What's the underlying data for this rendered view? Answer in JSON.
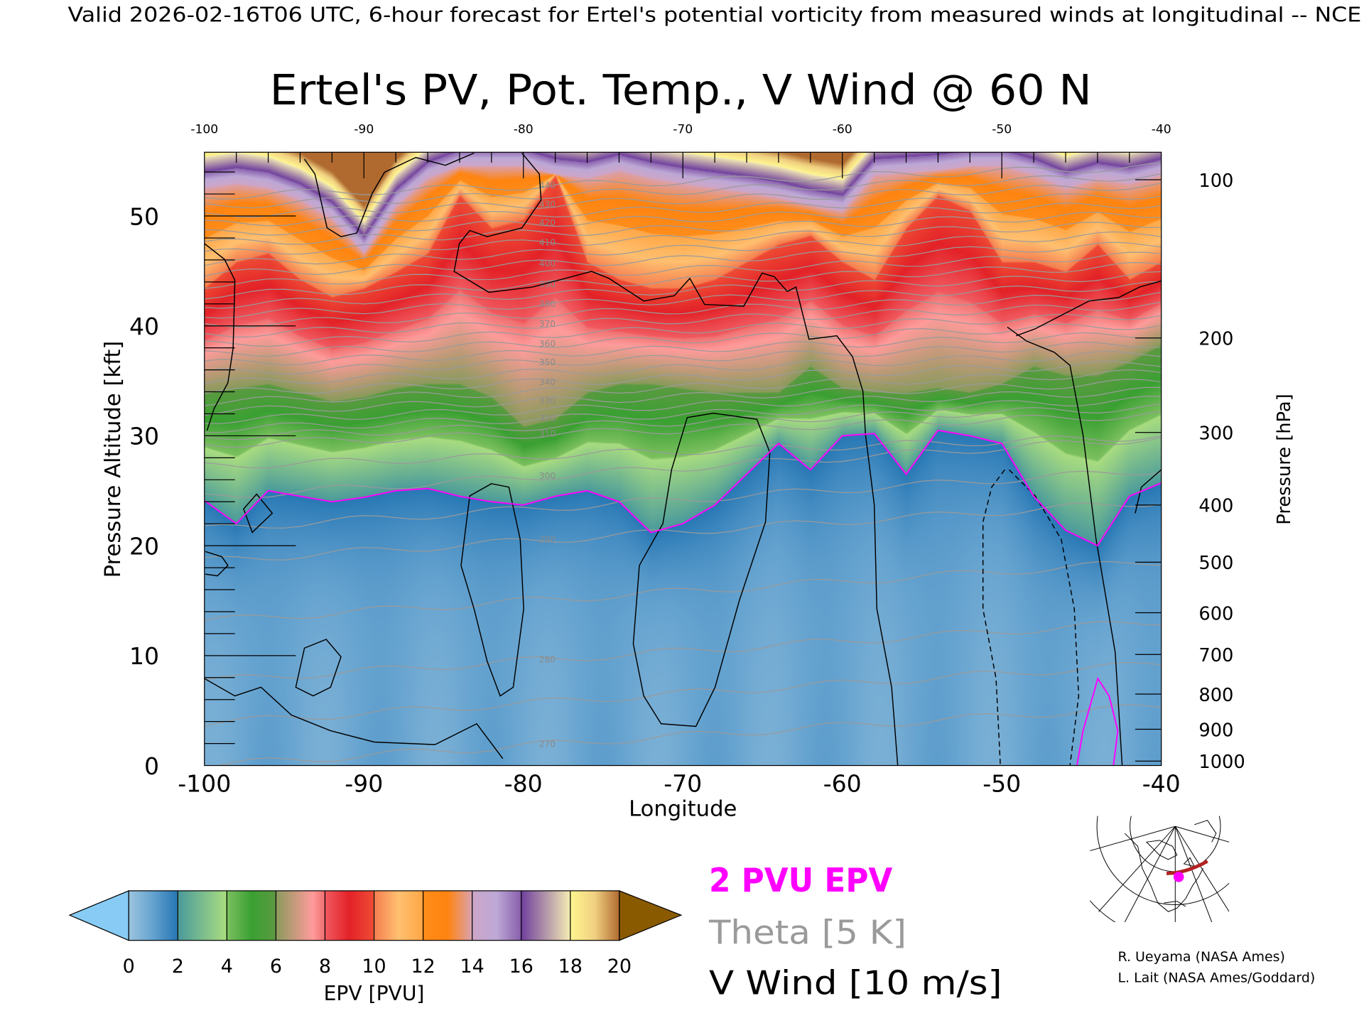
{
  "header": {
    "valid_line": "Valid 2026-02-16T06 UTC, 6-hour forecast for Ertel's potential vorticity from measured winds at longitudinal -- NCE",
    "title": "Ertel's PV, Pot. Temp., V Wind @ 60 N"
  },
  "legend": {
    "pvu_label": "2 PVU EPV",
    "theta_label": "Theta [5 K]",
    "wind_label": "V Wind [10 m/s]",
    "colors": {
      "pvu": "#ff00ff",
      "theta": "#9a9a9a",
      "wind": "#000000"
    }
  },
  "colorbar": {
    "label": "EPV [PVU]",
    "ticks": [
      "0",
      "2",
      "4",
      "6",
      "8",
      "10",
      "12",
      "14",
      "16",
      "18",
      "20"
    ],
    "under_color": "#88ccf5",
    "over_color": "#8a5a00"
  },
  "credits": [
    "R. Ueyama (NASA Ames)",
    "L. Lait (NASA Ames/Goddard)"
  ],
  "chart_data": {
    "type": "heatmap",
    "title": "Ertel's PV, Pot. Temp., V Wind @ 60 N",
    "xlabel": "Longitude",
    "ylabel": "Pressure Altitude [kft]",
    "y2label": "Pressure [hPa]",
    "xlim": [
      -100,
      -40
    ],
    "ylim": [
      0,
      55.8
    ],
    "x_ticks": [
      "-100",
      "-90",
      "-80",
      "-70",
      "-60",
      "-50",
      "-40"
    ],
    "top_x_ticks": [
      "-100",
      "-90",
      "-80",
      "-70",
      "-60",
      "-50",
      "-40"
    ],
    "y_ticks": [
      {
        "label": "0",
        "value": 0
      },
      {
        "label": "10",
        "value": 10
      },
      {
        "label": "20",
        "value": 20
      },
      {
        "label": "30",
        "value": 30
      },
      {
        "label": "40",
        "value": 40
      },
      {
        "label": "50",
        "value": 50
      }
    ],
    "pressure_ticks": [
      {
        "label": "100",
        "kft": 53.3
      },
      {
        "label": "200",
        "kft": 38.9
      },
      {
        "label": "300",
        "kft": 30.3
      },
      {
        "label": "400",
        "kft": 23.7
      },
      {
        "label": "500",
        "kft": 18.5
      },
      {
        "label": "600",
        "kft": 13.9
      },
      {
        "label": "700",
        "kft": 10.1
      },
      {
        "label": "800",
        "kft": 6.5
      },
      {
        "label": "900",
        "kft": 3.3
      },
      {
        "label": "1000",
        "kft": 0.4
      }
    ],
    "longitudes": [
      -100,
      -98,
      -96,
      -94,
      -92,
      -90,
      -88,
      -86,
      -84,
      -82,
      -80,
      -78,
      -76,
      -74,
      -72,
      -70,
      -68,
      -66,
      -64,
      -62,
      -60,
      -58,
      -56,
      -54,
      -52,
      -50,
      -48,
      -46,
      -44,
      -42,
      -40
    ],
    "pv2_kft": [
      24.1,
      22.0,
      25.0,
      24.5,
      24.0,
      24.4,
      25.0,
      25.2,
      24.5,
      24.0,
      23.7,
      24.5,
      25.0,
      24.0,
      21.2,
      22.0,
      23.7,
      26.5,
      29.3,
      26.9,
      30.0,
      30.2,
      26.5,
      30.5,
      30.0,
      29.3,
      24.5,
      21.4,
      20.0,
      24.5,
      25.7
    ],
    "pv6_kft": [
      34.0,
      34.4,
      34.8,
      34.0,
      33.2,
      33.6,
      34.4,
      34.8,
      34.8,
      33.6,
      30.9,
      31.6,
      34.0,
      34.8,
      34.8,
      34.4,
      34.0,
      34.0,
      34.0,
      36.4,
      34.4,
      34.0,
      34.0,
      34.4,
      34.0,
      34.8,
      36.4,
      35.6,
      35.6,
      36.8,
      38.4
    ],
    "pv10_kft": [
      43.5,
      45.9,
      46.7,
      44.3,
      42.7,
      43.5,
      45.0,
      46.7,
      52.0,
      49.0,
      49.8,
      53.8,
      45.9,
      44.3,
      43.5,
      43.5,
      44.3,
      45.9,
      47.5,
      48.3,
      45.9,
      44.3,
      49.0,
      52.0,
      50.6,
      45.9,
      45.9,
      45.0,
      47.5,
      44.3,
      45.9
    ],
    "pv14_kft": [
      52.6,
      53.0,
      52.6,
      51.5,
      49.8,
      46.7,
      51.0,
      53.5,
      54.6,
      54.6,
      54.6,
      53.8,
      53.5,
      54.2,
      53.5,
      53.0,
      52.6,
      52.2,
      51.7,
      51.0,
      50.5,
      53.8,
      54.0,
      54.2,
      54.6,
      54.6,
      53.8,
      52.6,
      53.4,
      53.0,
      53.8
    ],
    "theta_K": [
      270,
      280,
      290,
      300,
      310,
      320,
      330,
      340,
      350,
      360,
      370,
      380,
      390,
      400,
      410,
      420,
      430,
      440
    ],
    "theta_kft_at_80W": [
      1.8,
      9.5,
      20.4,
      26.2,
      30.1,
      31.5,
      33.1,
      34.8,
      36.6,
      38.3,
      40.1,
      41.9,
      43.7,
      45.6,
      47.5,
      49.3,
      51.0,
      52.7
    ],
    "theta_labels": [
      "270",
      "280",
      "290",
      "300",
      "310",
      "320",
      "330",
      "340",
      "350",
      "360",
      "370",
      "380",
      "390",
      "400",
      "410",
      "420",
      "430",
      "440"
    ],
    "vwind_contour_labels": [
      "0",
      "10",
      "-10"
    ]
  }
}
